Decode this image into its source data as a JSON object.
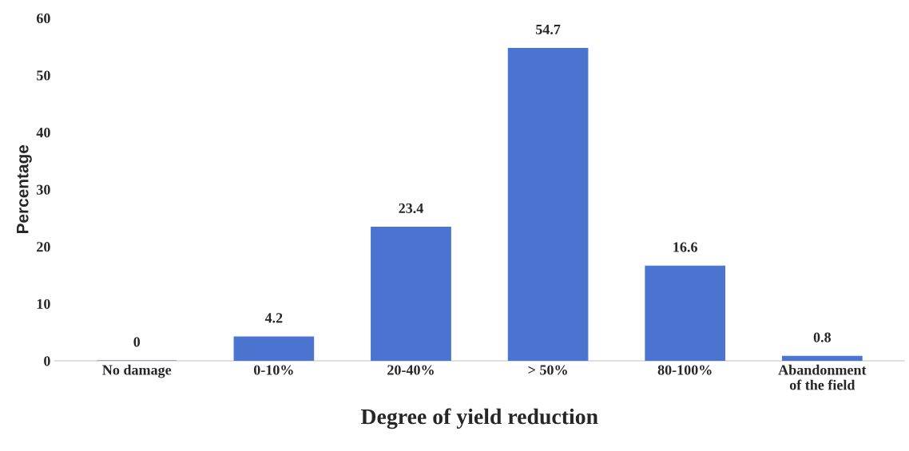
{
  "chart_data": {
    "type": "bar",
    "xlabel": "Degree of yield reduction",
    "ylabel": "Percentage",
    "categories": [
      "No damage",
      "0-10%",
      "20-40%",
      "> 50%",
      "80-100%",
      "Abandonment\nof the field"
    ],
    "values": [
      0,
      4.2,
      23.4,
      54.7,
      16.6,
      0.8
    ],
    "color": "#4a74cf",
    "ylim": [
      0,
      60
    ],
    "yticks": [
      0,
      10,
      20,
      30,
      40,
      50,
      60
    ],
    "grid": false,
    "data_labels": true
  }
}
